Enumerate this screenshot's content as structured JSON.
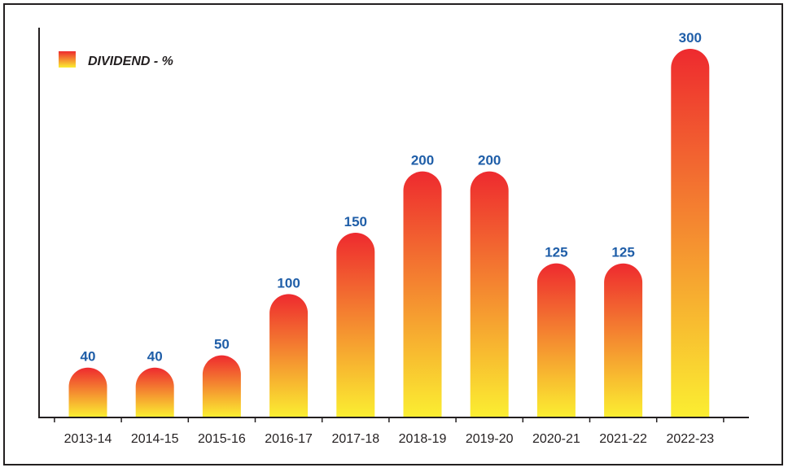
{
  "chart_data": {
    "type": "bar",
    "categories": [
      "2013-14",
      "2014-15",
      "2015-16",
      "2016-17",
      "2017-18",
      "2018-19",
      "2019-20",
      "2020-21",
      "2021-22",
      "2022-23"
    ],
    "series": [
      {
        "name": "DIVIDEND - %",
        "values": [
          40,
          40,
          50,
          100,
          150,
          200,
          200,
          125,
          125,
          300
        ]
      }
    ],
    "data_labels": [
      "40",
      "40",
      "50",
      "100",
      "150",
      "200",
      "200",
      "125",
      "125",
      "300"
    ],
    "title": "",
    "xlabel": "",
    "ylabel": "",
    "ylim": [
      0,
      300
    ],
    "grid": false,
    "legend": {
      "position": "top-left"
    },
    "colors": {
      "bar_top": "#ee2a2f",
      "bar_bottom": "#fbee31",
      "value_label": "#1f5ea8",
      "axis": "#231f20"
    }
  }
}
